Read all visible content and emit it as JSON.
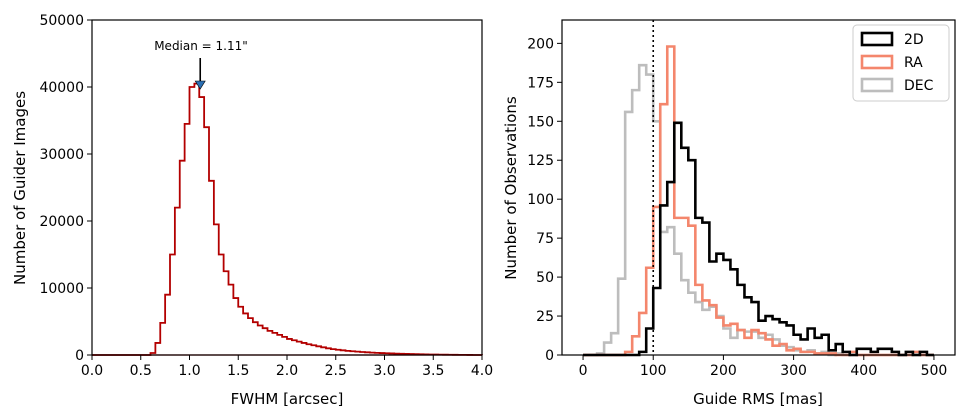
{
  "chart_data": [
    {
      "type": "histogram",
      "xlabel": "FWHM [arcsec]",
      "ylabel": "Number of Guider Images",
      "xlim": [
        0.0,
        4.0
      ],
      "ylim": [
        0,
        50000
      ],
      "xticks": [
        "0.0",
        "0.5",
        "1.0",
        "1.5",
        "2.0",
        "2.5",
        "3.0",
        "3.5",
        "4.0"
      ],
      "yticks": [
        "0",
        "10000",
        "20000",
        "30000",
        "40000",
        "50000"
      ],
      "annotation": "Median = 1.11\"",
      "annotation_x": 1.11,
      "color": "#b30000",
      "bin_width": 0.05,
      "bin_start": 0.0,
      "counts": [
        0,
        0,
        0,
        0,
        0,
        0,
        0,
        0,
        0,
        0,
        0,
        0,
        300,
        1800,
        4800,
        9000,
        15000,
        22000,
        29000,
        34500,
        40000,
        40500,
        38500,
        34000,
        26000,
        19500,
        15000,
        12500,
        10500,
        8500,
        7200,
        6200,
        5500,
        4900,
        4400,
        4000,
        3600,
        3300,
        3000,
        2700,
        2400,
        2200,
        2000,
        1800,
        1600,
        1450,
        1300,
        1150,
        1000,
        880,
        780,
        700,
        620,
        560,
        500,
        450,
        400,
        360,
        320,
        290,
        260,
        230,
        200,
        180,
        160,
        140,
        120,
        100,
        90,
        80,
        70,
        60,
        50,
        40,
        30,
        20,
        15,
        10,
        5,
        2
      ]
    },
    {
      "type": "histogram",
      "xlabel": "Guide RMS [mas]",
      "ylabel": "Number of Observations",
      "xlim": [
        -30,
        530
      ],
      "ylim": [
        0,
        215
      ],
      "xticks": [
        "0",
        "100",
        "200",
        "300",
        "400",
        "500"
      ],
      "yticks": [
        "0",
        "25",
        "50",
        "75",
        "100",
        "125",
        "150",
        "175",
        "200"
      ],
      "vline_x": 100,
      "legend_position": "top-right",
      "bin_width": 10,
      "bin_start": 0,
      "series": [
        {
          "name": "2D",
          "color": "#000000",
          "counts": [
            0,
            0,
            0,
            0,
            0,
            0,
            0,
            0,
            2,
            17,
            43,
            96,
            111,
            149,
            133,
            125,
            88,
            85,
            60,
            65,
            61,
            55,
            45,
            37,
            34,
            22,
            25,
            23,
            21,
            19,
            13,
            10,
            17,
            11,
            13,
            3,
            7,
            2,
            0,
            4,
            4,
            2,
            4,
            4,
            2,
            0,
            2,
            0,
            2,
            0
          ]
        },
        {
          "name": "RA",
          "color": "#f4866c",
          "counts": [
            0,
            0,
            0,
            0,
            0,
            0,
            2,
            12,
            27,
            56,
            95,
            161,
            198,
            88,
            88,
            83,
            45,
            35,
            32,
            24,
            19,
            20,
            16,
            11,
            16,
            14,
            10,
            6,
            7,
            3,
            4,
            2,
            2,
            1,
            1,
            1,
            0,
            0,
            2,
            0,
            0,
            0,
            0,
            0,
            0,
            0,
            0,
            2,
            0,
            0
          ]
        },
        {
          "name": "DEC",
          "color": "#bdbdbd",
          "counts": [
            0,
            0,
            1,
            8,
            14,
            49,
            156,
            170,
            186,
            180,
            150,
            79,
            82,
            65,
            48,
            40,
            34,
            29,
            31,
            25,
            17,
            11,
            16,
            15,
            15,
            11,
            13,
            10,
            6,
            5,
            3,
            2,
            3,
            1,
            2,
            0,
            1,
            0,
            0,
            0,
            0,
            0,
            0,
            0,
            0,
            0,
            0,
            0,
            0,
            0
          ]
        }
      ]
    }
  ]
}
